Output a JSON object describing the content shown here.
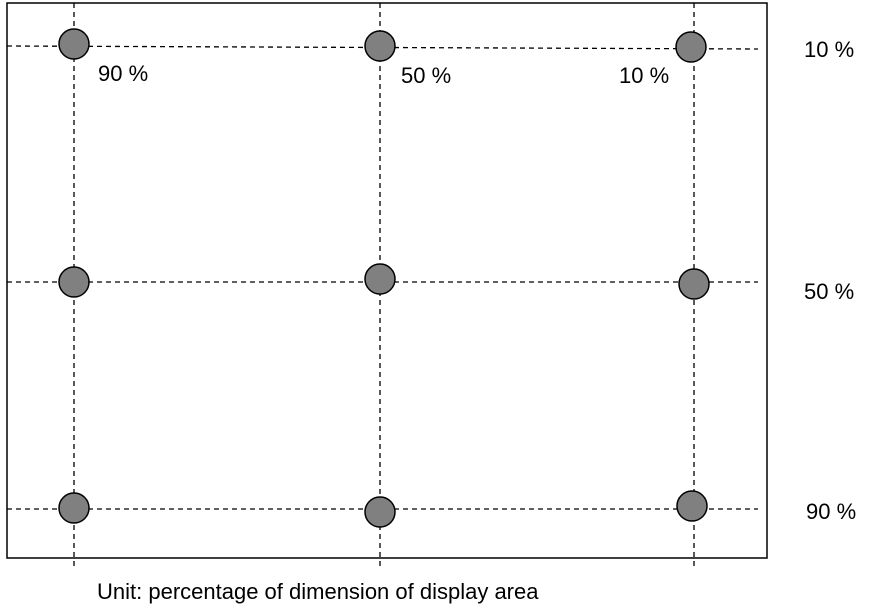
{
  "labels": {
    "col_1": "90 %",
    "col_2": "50 %",
    "col_3": "10 %",
    "row_1": "10 %",
    "row_2": "50 %",
    "row_3": "90 %"
  },
  "caption": "Unit: percentage of dimension of display area"
}
